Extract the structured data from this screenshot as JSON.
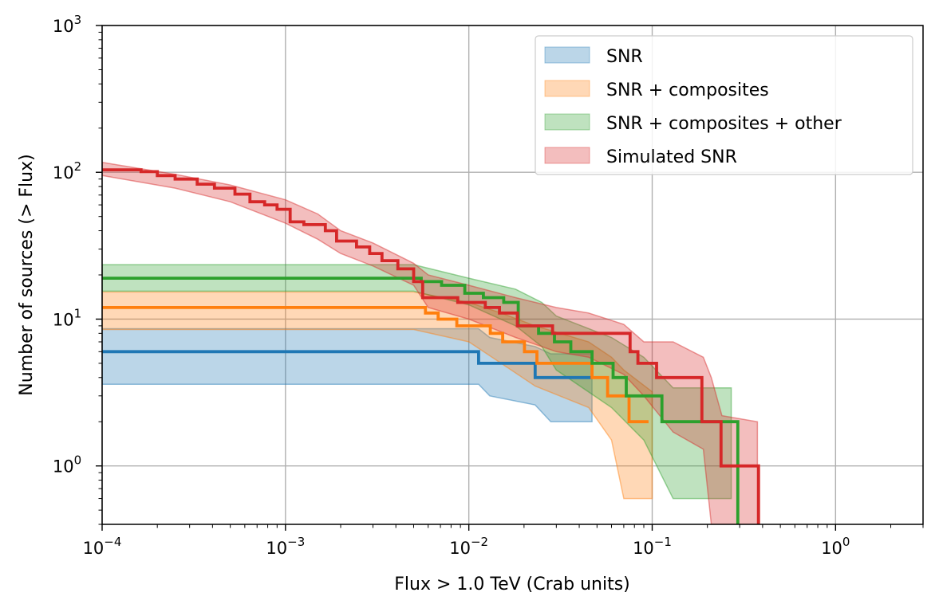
{
  "chart_data": {
    "type": "line",
    "step_plot": true,
    "title": "",
    "xlabel": "Flux > 1.0 TeV (Crab units)",
    "ylabel": "Number of sources (> Flux)",
    "xscale": "log",
    "yscale": "log",
    "xlim": [
      0.0001,
      3.0
    ],
    "ylim": [
      0.4,
      1000
    ],
    "grid": true,
    "legend_position": "top-right",
    "x_ticks": [
      {
        "value": 0.0001,
        "base": "10",
        "exp": "−4"
      },
      {
        "value": 0.001,
        "base": "10",
        "exp": "−3"
      },
      {
        "value": 0.01,
        "base": "10",
        "exp": "−2"
      },
      {
        "value": 0.1,
        "base": "10",
        "exp": "−1"
      },
      {
        "value": 1,
        "base": "10",
        "exp": "0"
      }
    ],
    "y_ticks": [
      {
        "value": 1,
        "base": "10",
        "exp": "0"
      },
      {
        "value": 10,
        "base": "10",
        "exp": "1"
      },
      {
        "value": 100,
        "base": "10",
        "exp": "2"
      },
      {
        "value": 1000,
        "base": "10",
        "exp": "3"
      }
    ],
    "series": [
      {
        "name": "SNR",
        "color": "#1f77b4",
        "band_color": "#1f77b4",
        "steps": [
          [
            0.0001,
            6
          ],
          [
            0.0113,
            5
          ],
          [
            0.023,
            4
          ],
          [
            0.047,
            4
          ]
        ],
        "band": [
          [
            0.0001,
            3.6,
            8.6
          ],
          [
            0.0113,
            3.6,
            8.6
          ],
          [
            0.013,
            3.0,
            7.5
          ],
          [
            0.023,
            2.6,
            6.5
          ],
          [
            0.028,
            2.0,
            5.8
          ],
          [
            0.047,
            2.0,
            5.8
          ]
        ]
      },
      {
        "name": "SNR + composites",
        "color": "#ff7f0e",
        "band_color": "#ff7f0e",
        "steps": [
          [
            0.0001,
            12
          ],
          [
            0.0058,
            11
          ],
          [
            0.0068,
            10
          ],
          [
            0.0086,
            9
          ],
          [
            0.0131,
            8
          ],
          [
            0.0153,
            7
          ],
          [
            0.0201,
            6
          ],
          [
            0.0235,
            5
          ],
          [
            0.047,
            4
          ],
          [
            0.0571,
            3
          ],
          [
            0.0748,
            2
          ],
          [
            0.0955,
            2
          ]
        ],
        "band": [
          [
            0.0001,
            8.5,
            15.3
          ],
          [
            0.005,
            8.5,
            15.3
          ],
          [
            0.01,
            7.0,
            13.0
          ],
          [
            0.015,
            5.0,
            11.0
          ],
          [
            0.023,
            3.5,
            9.0
          ],
          [
            0.045,
            2.5,
            7.0
          ],
          [
            0.06,
            1.5,
            5.5
          ],
          [
            0.07,
            0.6,
            4.5
          ],
          [
            0.1,
            0.6,
            3.2
          ]
        ]
      },
      {
        "name": "SNR + composites + other",
        "color": "#2ca02c",
        "band_color": "#2ca02c",
        "steps": [
          [
            0.0001,
            19
          ],
          [
            0.0055,
            18
          ],
          [
            0.0071,
            17
          ],
          [
            0.0095,
            15
          ],
          [
            0.012,
            14
          ],
          [
            0.0155,
            13
          ],
          [
            0.0186,
            9
          ],
          [
            0.024,
            8
          ],
          [
            0.0293,
            7
          ],
          [
            0.036,
            6
          ],
          [
            0.047,
            5
          ],
          [
            0.0612,
            4
          ],
          [
            0.0722,
            3
          ],
          [
            0.113,
            2
          ],
          [
            0.272,
            2
          ],
          [
            0.293,
            0
          ]
        ],
        "band": [
          [
            0.0001,
            15.5,
            23.5
          ],
          [
            0.005,
            15.5,
            23.5
          ],
          [
            0.01,
            12.5,
            19.0
          ],
          [
            0.018,
            9.0,
            16.0
          ],
          [
            0.025,
            6.5,
            13.0
          ],
          [
            0.03,
            4.5,
            10.5
          ],
          [
            0.06,
            2.5,
            7.5
          ],
          [
            0.09,
            1.5,
            5.5
          ],
          [
            0.13,
            0.6,
            3.4
          ],
          [
            0.27,
            0.6,
            3.4
          ]
        ]
      },
      {
        "name": "Simulated SNR",
        "color": "#d62728",
        "band_color": "#d62728",
        "steps": [
          [
            0.0001,
            104
          ],
          [
            0.000163,
            101
          ],
          [
            0.0002,
            95
          ],
          [
            0.00025,
            90
          ],
          [
            0.00033,
            83
          ],
          [
            0.00041,
            78
          ],
          [
            0.00053,
            71
          ],
          [
            0.00064,
            63
          ],
          [
            0.00077,
            60
          ],
          [
            0.0009,
            56
          ],
          [
            0.00106,
            46
          ],
          [
            0.00126,
            44
          ],
          [
            0.00165,
            40
          ],
          [
            0.0019,
            34
          ],
          [
            0.00244,
            31
          ],
          [
            0.00288,
            28
          ],
          [
            0.00336,
            25
          ],
          [
            0.0041,
            22
          ],
          [
            0.005,
            18
          ],
          [
            0.0056,
            14
          ],
          [
            0.0087,
            13
          ],
          [
            0.0123,
            12
          ],
          [
            0.0147,
            11
          ],
          [
            0.0184,
            9
          ],
          [
            0.0286,
            8
          ],
          [
            0.0434,
            8
          ],
          [
            0.0758,
            6
          ],
          [
            0.0836,
            5
          ],
          [
            0.1057,
            4
          ],
          [
            0.1866,
            2
          ],
          [
            0.2375,
            1
          ],
          [
            0.363,
            1
          ],
          [
            0.38,
            0
          ]
        ],
        "band": [
          [
            0.0001,
            95,
            117
          ],
          [
            0.00025,
            78,
            97
          ],
          [
            0.0005,
            63,
            82
          ],
          [
            0.001,
            45,
            65
          ],
          [
            0.0015,
            35,
            52
          ],
          [
            0.002,
            28,
            40
          ],
          [
            0.003,
            23,
            33
          ],
          [
            0.005,
            17,
            24
          ],
          [
            0.006,
            12,
            20
          ],
          [
            0.01,
            10,
            17
          ],
          [
            0.018,
            7.5,
            14
          ],
          [
            0.03,
            6,
            12
          ],
          [
            0.045,
            5.5,
            11
          ],
          [
            0.07,
            4.2,
            9.2
          ],
          [
            0.09,
            3.0,
            7.0
          ],
          [
            0.13,
            1.7,
            7.0
          ],
          [
            0.19,
            1.3,
            5.5
          ],
          [
            0.21,
            0.4,
            4.0
          ],
          [
            0.24,
            0.4,
            2.2
          ],
          [
            0.375,
            0.4,
            2.0
          ]
        ]
      }
    ]
  }
}
